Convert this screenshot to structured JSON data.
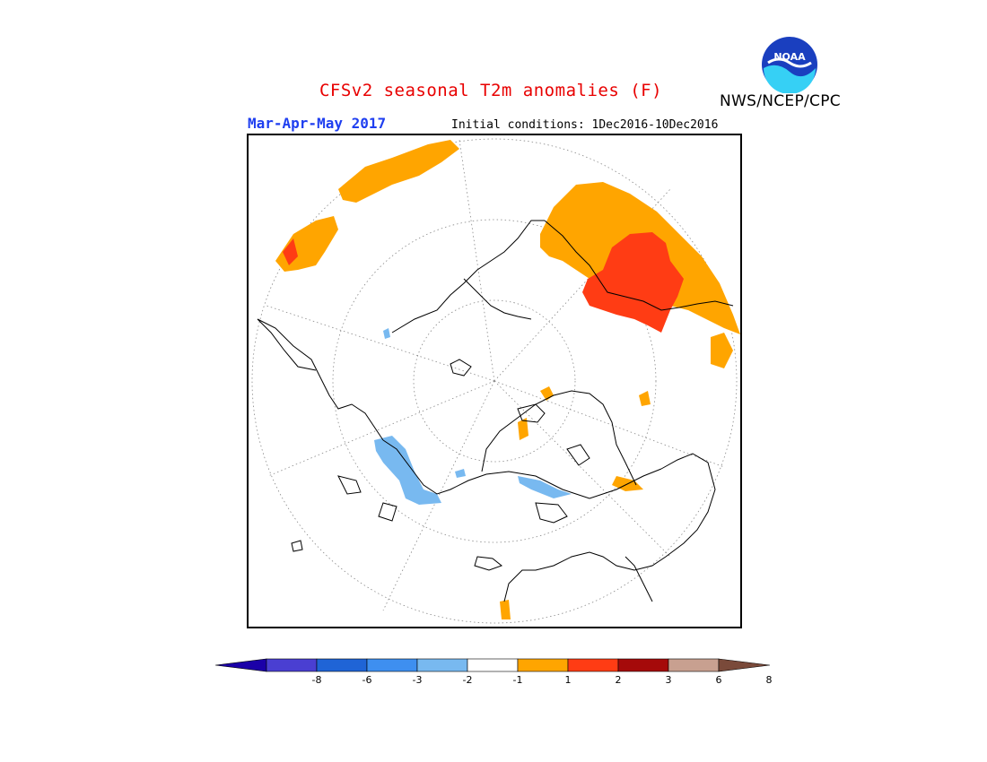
{
  "header": {
    "title": "CFSv2 seasonal T2m anomalies (F)",
    "season": "Mar-Apr-May 2017",
    "initial_conditions": "Initial conditions: 1Dec2016-10Dec2016",
    "agency": "NWS/NCEP/CPC",
    "logo_text": "NOAA"
  },
  "map": {
    "projection": "north-polar-stereographic",
    "graticule": "dotted",
    "coastline_color": "#000000"
  },
  "colorbar": {
    "labels": [
      "-8",
      "-6",
      "-3",
      "-2",
      "-1",
      "1",
      "2",
      "3",
      "6",
      "8"
    ],
    "colors": [
      "#1b00a8",
      "#4a3fd2",
      "#1f64d6",
      "#3e8ff0",
      "#78b9f0",
      "#ffffff",
      "#ffa500",
      "#ff3c14",
      "#a50a0a",
      "#c8a090",
      "#7a4a3a"
    ]
  }
}
